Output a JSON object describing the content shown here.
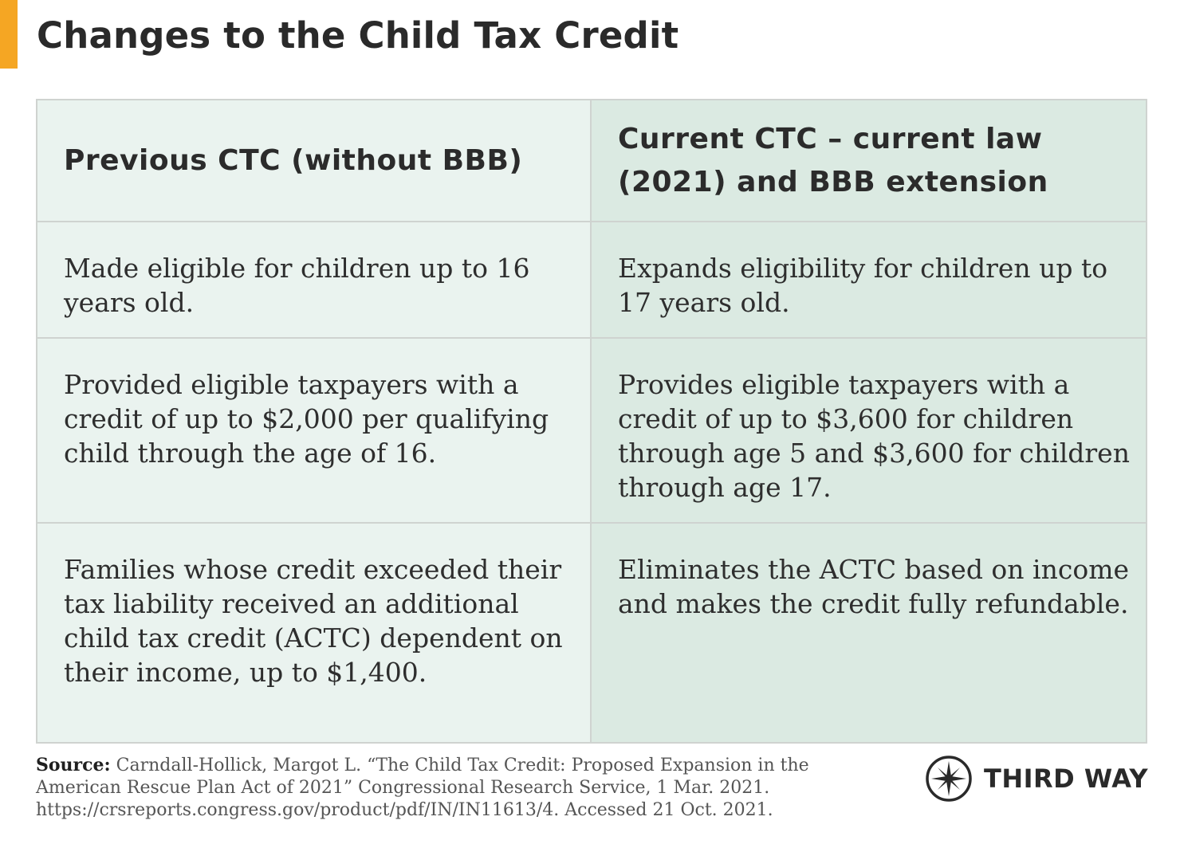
{
  "title": "Changes to the Child Tax Credit",
  "colors": {
    "accent": "#f5a623",
    "col_previous": "#eaf3ef",
    "col_current": "#dbeae2"
  },
  "table": {
    "headers": [
      "Previous CTC (without BBB)",
      "Current CTC – current law (2021) and BBB extension"
    ],
    "rows": [
      [
        "Made eligible for children up to 16 years old.",
        "Expands eligibility for children up to 17 years old."
      ],
      [
        "Provided eligible taxpayers with a credit of up to $2,000 per qualifying child through the age of 16.",
        "Provides eligible taxpayers with a credit of up to $3,600 for children through age 5 and $3,600 for children through age 17."
      ],
      [
        "Families whose credit exceeded their tax liability received an additional child tax credit (ACTC) dependent on their income, up to $1,400.",
        "Eliminates the ACTC based on income and makes the credit fully refundable."
      ]
    ]
  },
  "source": {
    "label": "Source:",
    "text": "Carndall-Hollick, Margot L. “The Child Tax Credit: Proposed Expansion in the American Rescue Plan Act of 2021” Congressional Research Service, 1 Mar. 2021. https://crsreports.congress.gov/product/pdf/IN/IN11613/4. Accessed 21 Oct. 2021."
  },
  "logo": {
    "text": "THIRD WAY",
    "icon": "compass-star-icon"
  }
}
